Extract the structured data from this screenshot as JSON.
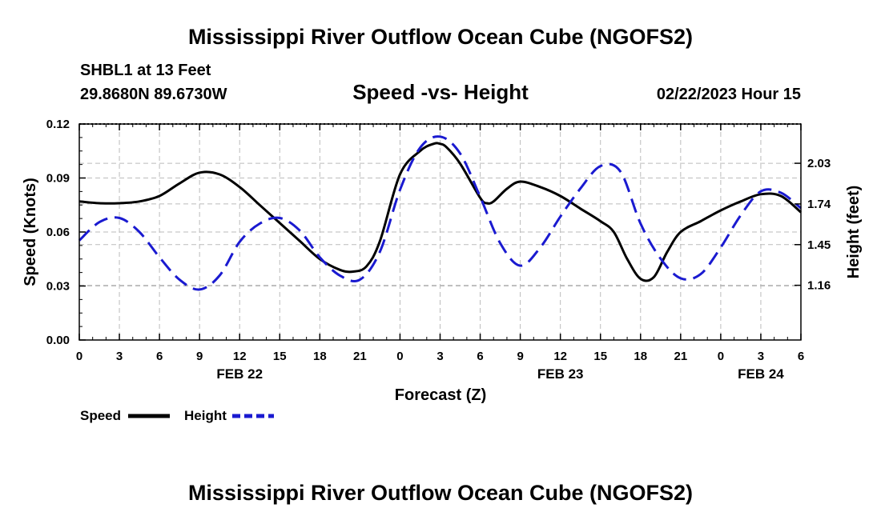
{
  "page": {
    "title": "Mississippi River Outflow Ocean Cube (NGOFS2)",
    "title_bottom": "Mississippi River Outflow Ocean Cube (NGOFS2)",
    "station": "SHBL1 at 13 Feet",
    "coords": "29.8680N  89.6730W",
    "subtitle": "Speed -vs- Height",
    "datetime": "02/22/2023 Hour 15"
  },
  "legend": {
    "speed_label": "Speed",
    "height_label": "Height"
  },
  "colors": {
    "speed": "#000000",
    "height": "#1a1ad0",
    "grid": "#bbbbbb"
  },
  "chart_data": {
    "type": "line",
    "xlabel": "Forecast (Z)",
    "ylabel": "Speed (Knots)",
    "ylabel_right": "Height (feet)",
    "xlim": [
      0,
      54
    ],
    "ylim": [
      0,
      0.12
    ],
    "ylim_right": [
      0.77,
      2.31
    ],
    "x_ticks": [
      0,
      3,
      6,
      9,
      12,
      15,
      18,
      21,
      24,
      27,
      30,
      33,
      36,
      39,
      42,
      45,
      48,
      51,
      54
    ],
    "x_tick_labels": [
      "0",
      "3",
      "6",
      "9",
      "12",
      "15",
      "18",
      "21",
      "0",
      "3",
      "6",
      "9",
      "12",
      "15",
      "18",
      "21",
      "0",
      "3",
      "6"
    ],
    "date_labels": [
      {
        "x": 12,
        "label": "FEB 22"
      },
      {
        "x": 36,
        "label": "FEB 23"
      },
      {
        "x": 51,
        "label": "FEB 24"
      }
    ],
    "y_ticks": [
      0,
      0.03,
      0.06,
      0.09,
      0.12
    ],
    "y_tick_labels": [
      "0.00",
      "0.03",
      "0.06",
      "0.09",
      "0.12"
    ],
    "y_ticks_right": [
      1.16,
      1.45,
      1.74,
      2.03
    ],
    "y_tick_labels_right": [
      "1.16",
      "1.45",
      "1.74",
      "2.03"
    ],
    "grid": true,
    "series": [
      {
        "name": "Speed",
        "axis": "left",
        "style": "solid",
        "x": [
          0,
          1.5,
          3,
          4.5,
          6,
          7.5,
          9,
          10.5,
          12,
          13.5,
          15,
          16.5,
          18,
          19.5,
          20.5,
          21.5,
          22.5,
          24,
          25.5,
          26.5,
          27,
          27.5,
          28.5,
          30,
          30.5,
          31,
          32,
          33,
          34.5,
          36,
          37.5,
          39,
          40,
          41,
          42,
          43,
          44,
          45,
          46.5,
          48,
          49.5,
          51,
          52.5,
          54
        ],
        "values": [
          0.077,
          0.076,
          0.076,
          0.077,
          0.08,
          0.087,
          0.093,
          0.092,
          0.085,
          0.075,
          0.065,
          0.055,
          0.045,
          0.039,
          0.038,
          0.041,
          0.055,
          0.092,
          0.105,
          0.109,
          0.109,
          0.107,
          0.098,
          0.079,
          0.076,
          0.077,
          0.084,
          0.088,
          0.085,
          0.08,
          0.073,
          0.066,
          0.06,
          0.045,
          0.034,
          0.035,
          0.049,
          0.06,
          0.066,
          0.072,
          0.077,
          0.081,
          0.08,
          0.071
        ]
      },
      {
        "name": "Height",
        "axis": "right",
        "style": "dashed",
        "x": [
          0,
          1.5,
          3,
          4.5,
          6,
          7.5,
          9,
          10.5,
          12,
          13.5,
          15,
          16.5,
          18,
          19.5,
          21,
          22.5,
          24,
          25.5,
          27,
          28.5,
          30,
          31.5,
          33,
          34.5,
          36,
          37.5,
          39,
          40.5,
          42,
          43.5,
          45,
          46.5,
          48,
          49.5,
          51,
          52.5,
          54
        ],
        "values": [
          1.48,
          1.61,
          1.64,
          1.54,
          1.36,
          1.2,
          1.13,
          1.23,
          1.47,
          1.6,
          1.64,
          1.55,
          1.36,
          1.23,
          1.2,
          1.4,
          1.84,
          2.14,
          2.22,
          2.1,
          1.79,
          1.46,
          1.3,
          1.43,
          1.65,
          1.85,
          2.01,
          1.97,
          1.6,
          1.35,
          1.21,
          1.24,
          1.43,
          1.66,
          1.83,
          1.82,
          1.71
        ]
      }
    ]
  }
}
